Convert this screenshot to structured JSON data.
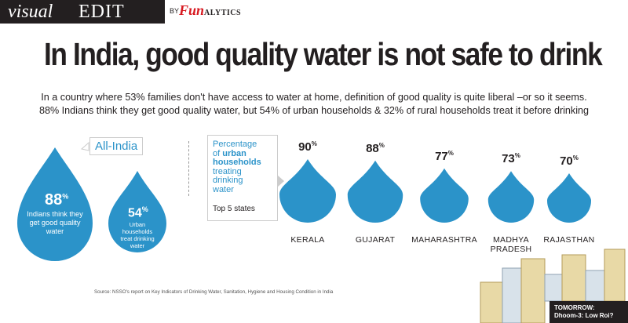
{
  "header": {
    "brand_visual": "visual",
    "brand_edit": "EDIT",
    "by": "BY",
    "logo_main": "Fun",
    "logo_small": "ALYTICS"
  },
  "title": "In India, good quality water is not safe to drink",
  "subtitle_line1": "In a country where 53% families don't have access to water at home, definition of good quality is quite liberal –or so it seems.",
  "subtitle_line2": "88% Indians think they get good quality water, but 54% of urban households & 32% of rural households treat it before drinking",
  "all_india": {
    "label": "All-India",
    "stat1_value": "88",
    "stat1_text": [
      "Indians think they",
      "get good quality",
      "water"
    ],
    "stat2_value": "54",
    "stat2_text": [
      "Urban households",
      "treat drinking",
      "water"
    ]
  },
  "callout": {
    "line1": "Percentage",
    "line2": "of",
    "line3_bold": "urban",
    "line4_bold": "households",
    "line5": "treating",
    "line6": "drinking",
    "line7": "water",
    "top": "Top 5 states"
  },
  "chart_data": {
    "type": "bar",
    "title": "Percentage of urban households treating drinking water",
    "subtitle": "Top 5 states",
    "categories": [
      "KERALA",
      "GUJARAT",
      "MAHARASHTRA",
      "MADHYA PRADESH",
      "RAJASTHAN"
    ],
    "category_lines": [
      [
        "KERALA"
      ],
      [
        "GUJARAT"
      ],
      [
        "MAHARASHTRA"
      ],
      [
        "MADHYA",
        "PRADESH"
      ],
      [
        "RAJASTHAN"
      ]
    ],
    "values": [
      90,
      88,
      77,
      73,
      70
    ],
    "unit": "%"
  },
  "source": "Source: NSSO's report on Key Indicators of Drinking Water, Sanitation, Hygiene and Housing Condition in India",
  "tomorrow": {
    "label": "TOMORROW:",
    "text": "Dhoom-3: Low Roi?"
  },
  "colors": {
    "drop": "#2b93c9",
    "drop_dark": "#1f7fb3",
    "accent_text": "#2b93c9",
    "header": "#231f20"
  }
}
